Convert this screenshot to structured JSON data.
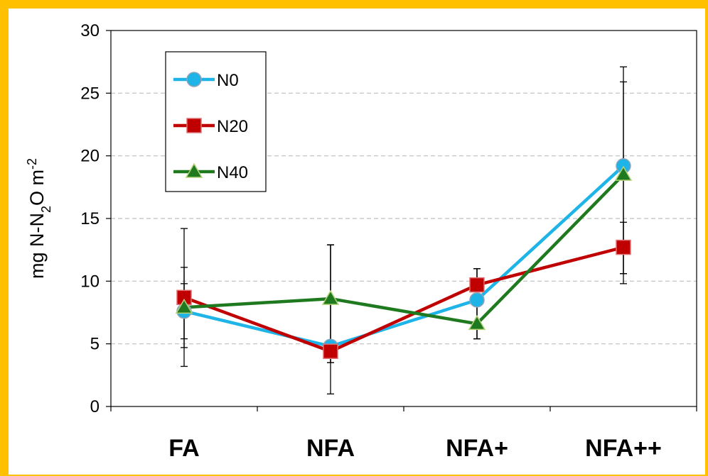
{
  "chart_data": {
    "type": "line",
    "title": "",
    "xlabel": "",
    "ylabel": {
      "main": "mg N-N",
      "sub": "2",
      "mid": "O m",
      "sup": "-2"
    },
    "categories": [
      "FA",
      "NFA",
      "NFA+",
      "NFA++"
    ],
    "ylim": [
      0,
      30
    ],
    "yticks": [
      0,
      5,
      10,
      15,
      20,
      25,
      30
    ],
    "grid": "horizontal dashed",
    "legend": "top-left",
    "series": [
      {
        "name": "N0",
        "marker": "circle",
        "color": "#1FB4E8",
        "values": [
          7.6,
          4.8,
          8.5,
          19.2
        ],
        "error_high": [
          11.1,
          12.9,
          11.0,
          27.1
        ],
        "error_low": [
          4.7,
          3.5,
          5.4,
          10.6
        ]
      },
      {
        "name": "N20",
        "marker": "square",
        "color": "#C00000",
        "values": [
          8.7,
          4.4,
          9.7,
          12.7
        ],
        "error_high": [
          14.2,
          12.9,
          11.0,
          14.7
        ],
        "error_low": [
          3.2,
          1.0,
          5.4,
          9.8
        ]
      },
      {
        "name": "N40",
        "marker": "triangle",
        "color": "#1F7A1F",
        "values": [
          7.9,
          8.6,
          6.6,
          18.5
        ],
        "error_high": [
          9.8,
          12.9,
          11.0,
          25.9
        ],
        "error_low": [
          5.4,
          3.5,
          5.4,
          10.6
        ]
      }
    ]
  }
}
